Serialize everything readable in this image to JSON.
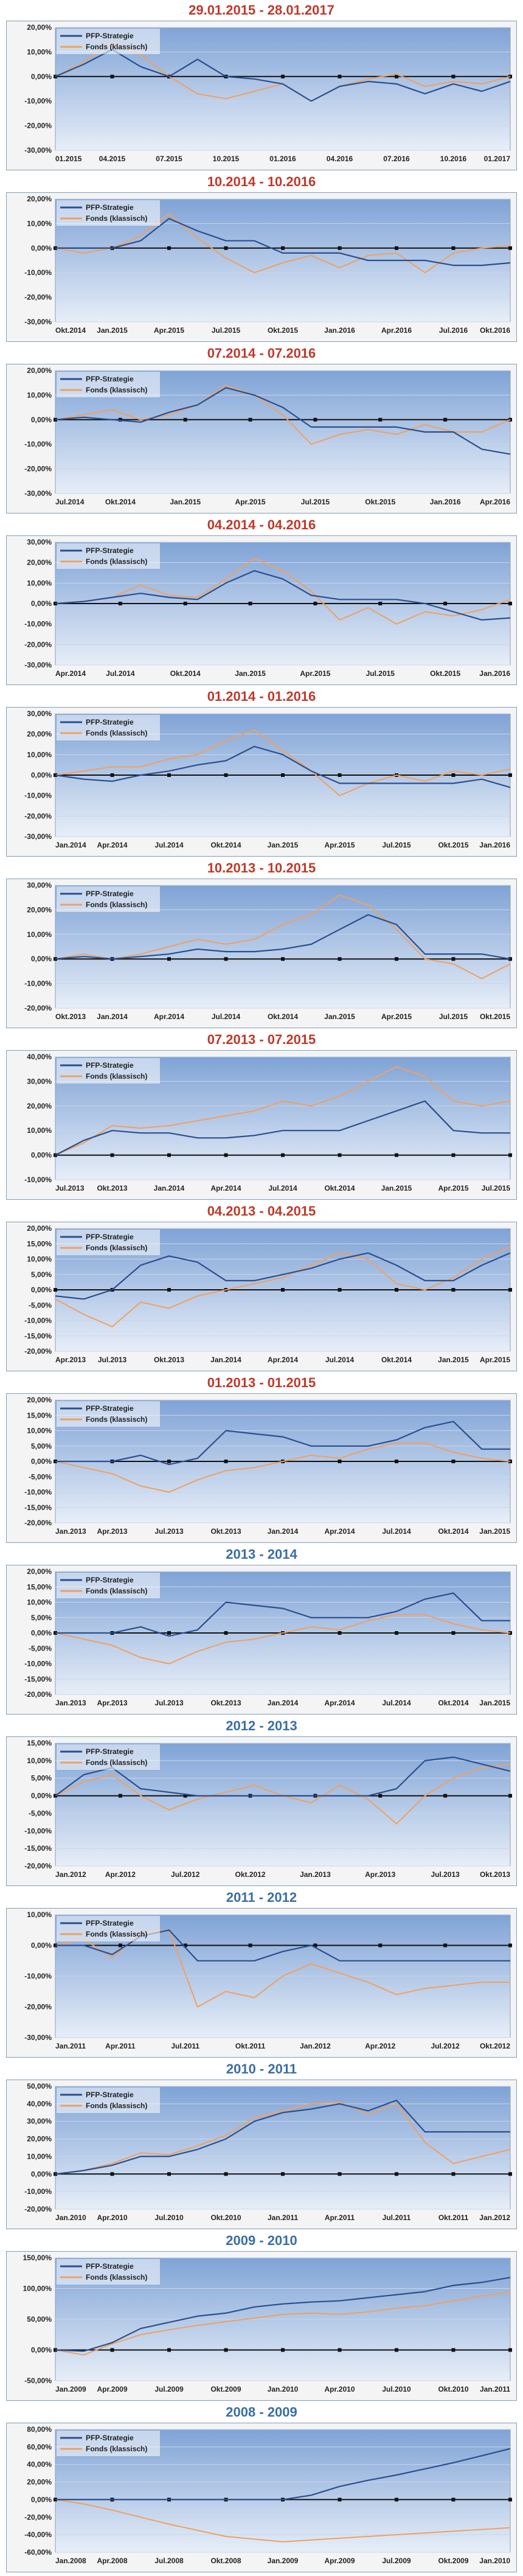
{
  "colors": {
    "strategy": "#2a4f8f",
    "fonds": "#f0a060",
    "baseline": "#111111",
    "title_red": "#c0392b",
    "title_blue": "#3a6ea5",
    "plot_bg_top": "#7fa3d6",
    "plot_bg_bottom": "#e7eef8",
    "frame": "#f4f4f4",
    "grid": "#c9d6ea"
  },
  "legend": {
    "strategy_label": "PFP-Strategie",
    "fonds_label": "Fonds (klassisch)"
  },
  "chart_data": [
    {
      "type": "line",
      "title": "29.01.2015 - 28.01.2017",
      "title_color": "red",
      "legend_position": "top-left",
      "grid": true,
      "yticks": [
        "20,00%",
        "10,00%",
        "0,00%",
        "-10,00%",
        "-20,00%",
        "-30,00%"
      ],
      "ylim": [
        -30,
        20
      ],
      "xticks": [
        "01.2015",
        "04.2015",
        "07.2015",
        "10.2015",
        "01.2016",
        "04.2016",
        "07.2016",
        "10.2016",
        "01.2017"
      ],
      "series": [
        {
          "name": "PFP-Strategie",
          "values": [
            0,
            5,
            11,
            4,
            0,
            7,
            0,
            -1,
            -3,
            -10,
            -4,
            -2,
            -3,
            -7,
            -3,
            -6,
            -2
          ]
        },
        {
          "name": "Fonds (klassisch)",
          "values": [
            0,
            6,
            14,
            9,
            0,
            -7,
            -9,
            -6,
            -3,
            -10,
            -4,
            -1,
            1,
            -4,
            -2,
            -3,
            0
          ]
        }
      ]
    },
    {
      "type": "line",
      "title": "10.2014 - 10.2016",
      "title_color": "red",
      "legend_position": "top-left",
      "grid": true,
      "yticks": [
        "20,00%",
        "10,00%",
        "0,00%",
        "-10,00%",
        "-20,00%",
        "-30,00%"
      ],
      "ylim": [
        -30,
        20
      ],
      "xticks": [
        "Okt.2014",
        "Jan.2015",
        "Apr.2015",
        "Jul.2015",
        "Okt.2015",
        "Jan.2016",
        "Apr.2016",
        "Jul.2016",
        "Okt.2016"
      ],
      "series": [
        {
          "name": "PFP-Strategie",
          "values": [
            0,
            0,
            0,
            3,
            12,
            7,
            3,
            3,
            -2,
            -2,
            -2,
            -5,
            -5,
            -5,
            -7,
            -7,
            -6
          ]
        },
        {
          "name": "Fonds (klassisch)",
          "values": [
            0,
            -2,
            0,
            5,
            14,
            4,
            -4,
            -10,
            -6,
            -3,
            -8,
            -3,
            -2,
            -10,
            -2,
            0,
            1
          ]
        }
      ]
    },
    {
      "type": "line",
      "title": "07.2014 - 07.2016",
      "title_color": "red",
      "legend_position": "top-left",
      "grid": true,
      "yticks": [
        "20,00%",
        "10,00%",
        "0,00%",
        "-10,00%",
        "-20,00%",
        "-30,00%"
      ],
      "ylim": [
        -30,
        20
      ],
      "xticks": [
        "Jul.2014",
        "Okt.2014",
        "Jan.2015",
        "Apr.2015",
        "Jul.2015",
        "Okt.2015",
        "Jan.2016",
        "Apr.2016"
      ],
      "series": [
        {
          "name": "PFP-Strategie",
          "values": [
            0,
            1,
            0,
            -1,
            3,
            6,
            13,
            10,
            5,
            -3,
            -3,
            -3,
            -3,
            -5,
            -5,
            -12,
            -14
          ]
        },
        {
          "name": "Fonds (klassisch)",
          "values": [
            0,
            2,
            4,
            0,
            2,
            6,
            14,
            10,
            2,
            -10,
            -6,
            -4,
            -6,
            -2,
            -5,
            -5,
            0
          ]
        }
      ]
    },
    {
      "type": "line",
      "title": "04.2014 - 04.2016",
      "title_color": "red",
      "legend_position": "top-left",
      "grid": true,
      "yticks": [
        "30,00%",
        "20,00%",
        "10,00%",
        "0,00%",
        "-10,00%",
        "-20,00%",
        "-30,00%"
      ],
      "ylim": [
        -30,
        30
      ],
      "xticks": [
        "Apr.2014",
        "Jul.2014",
        "Okt.2014",
        "Jan.2015",
        "Apr.2015",
        "Jul.2015",
        "Okt.2015",
        "Jan.2016"
      ],
      "series": [
        {
          "name": "PFP-Strategie",
          "values": [
            0,
            1,
            3,
            5,
            3,
            2,
            10,
            16,
            12,
            4,
            2,
            2,
            2,
            0,
            -4,
            -8,
            -7
          ]
        },
        {
          "name": "Fonds (klassisch)",
          "values": [
            0,
            1,
            3,
            9,
            4,
            3,
            12,
            22,
            16,
            6,
            -8,
            -2,
            -10,
            -4,
            -6,
            -3,
            2
          ]
        }
      ]
    },
    {
      "type": "line",
      "title": "01.2014 - 01.2016",
      "title_color": "red",
      "legend_position": "top-left",
      "grid": true,
      "yticks": [
        "30,00%",
        "20,00%",
        "10,00%",
        "0,00%",
        "-10,00%",
        "-20,00%",
        "-30,00%"
      ],
      "ylim": [
        -30,
        30
      ],
      "xticks": [
        "Jan.2014",
        "Apr.2014",
        "Jul.2014",
        "Okt.2014",
        "Jan.2015",
        "Apr.2015",
        "Jul.2015",
        "Okt.2015",
        "Jan.2016"
      ],
      "series": [
        {
          "name": "PFP-Strategie",
          "values": [
            0,
            -2,
            -3,
            0,
            2,
            5,
            7,
            14,
            10,
            2,
            -4,
            -4,
            -4,
            -4,
            -4,
            -2,
            -6
          ]
        },
        {
          "name": "Fonds (klassisch)",
          "values": [
            0,
            2,
            4,
            4,
            8,
            10,
            17,
            22,
            12,
            2,
            -10,
            -4,
            0,
            -3,
            2,
            0,
            3
          ]
        }
      ]
    },
    {
      "type": "line",
      "title": "10.2013 - 10.2015",
      "title_color": "red",
      "legend_position": "top-left",
      "grid": true,
      "yticks": [
        "30,00%",
        "20,00%",
        "10,00%",
        "0,00%",
        "-10,00%",
        "-20,00%"
      ],
      "ylim": [
        -20,
        30
      ],
      "xticks": [
        "Okt.2013",
        "Jan.2014",
        "Apr.2014",
        "Jul.2014",
        "Okt.2014",
        "Jan.2015",
        "Apr.2015",
        "Jul.2015",
        "Okt.2015"
      ],
      "series": [
        {
          "name": "PFP-Strategie",
          "values": [
            0,
            1,
            0,
            1,
            2,
            4,
            3,
            3,
            4,
            6,
            12,
            18,
            14,
            2,
            2,
            2,
            0
          ]
        },
        {
          "name": "Fonds (klassisch)",
          "values": [
            0,
            2,
            0,
            2,
            5,
            8,
            6,
            8,
            14,
            18,
            26,
            22,
            12,
            0,
            -2,
            -8,
            -2
          ]
        }
      ]
    },
    {
      "type": "line",
      "title": "07.2013 - 07.2015",
      "title_color": "red",
      "legend_position": "top-left",
      "grid": true,
      "yticks": [
        "40,00%",
        "30,00%",
        "20,00%",
        "10,00%",
        "0,00%",
        "-10,00%"
      ],
      "ylim": [
        -10,
        40
      ],
      "xticks": [
        "Jul.2013",
        "Okt.2013",
        "Jan.2014",
        "Apr.2014",
        "Jul.2014",
        "Okt.2014",
        "Jan.2015",
        "Apr.2015",
        "Jul.2015"
      ],
      "series": [
        {
          "name": "PFP-Strategie",
          "values": [
            0,
            6,
            10,
            9,
            9,
            7,
            7,
            8,
            10,
            10,
            10,
            14,
            18,
            22,
            10,
            9,
            9
          ]
        },
        {
          "name": "Fonds (klassisch)",
          "values": [
            0,
            5,
            12,
            11,
            12,
            14,
            16,
            18,
            22,
            20,
            24,
            30,
            36,
            32,
            22,
            20,
            22
          ]
        }
      ]
    },
    {
      "type": "line",
      "title": "04.2013 - 04.2015",
      "title_color": "red",
      "legend_position": "top-left",
      "grid": true,
      "yticks": [
        "20,00%",
        "15,00%",
        "10,00%",
        "5,00%",
        "0,00%",
        "-5,00%",
        "-10,00%",
        "-15,00%",
        "-20,00%"
      ],
      "ylim": [
        -20,
        20
      ],
      "xticks": [
        "Apr.2013",
        "Jul.2013",
        "Okt.2013",
        "Jan.2014",
        "Apr.2014",
        "Jul.2014",
        "Okt.2014",
        "Jan.2015",
        "Apr.2015"
      ],
      "series": [
        {
          "name": "PFP-Strategie",
          "values": [
            -2,
            -3,
            0,
            8,
            11,
            9,
            3,
            3,
            5,
            7,
            10,
            12,
            8,
            3,
            3,
            8,
            12
          ]
        },
        {
          "name": "Fonds (klassisch)",
          "values": [
            -3,
            -8,
            -12,
            -4,
            -6,
            -2,
            0,
            2,
            4,
            8,
            12,
            10,
            2,
            0,
            4,
            10,
            14
          ]
        }
      ]
    },
    {
      "type": "line",
      "title": "01.2013 - 01.2015",
      "title_color": "red",
      "legend_position": "top-left",
      "grid": true,
      "yticks": [
        "20,00%",
        "15,00%",
        "10,00%",
        "5,00%",
        "0,00%",
        "-5,00%",
        "-10,00%",
        "-15,00%",
        "-20,00%"
      ],
      "ylim": [
        -20,
        20
      ],
      "xticks": [
        "Jan.2013",
        "Apr.2013",
        "Jul.2013",
        "Okt.2013",
        "Jan.2014",
        "Apr.2014",
        "Jul.2014",
        "Okt.2014",
        "Jan.2015"
      ],
      "series": [
        {
          "name": "PFP-Strategie",
          "values": [
            0,
            0,
            0,
            2,
            -1,
            1,
            10,
            9,
            8,
            5,
            5,
            5,
            7,
            11,
            13,
            4,
            4
          ]
        },
        {
          "name": "Fonds (klassisch)",
          "values": [
            0,
            -2,
            -4,
            -8,
            -10,
            -6,
            -3,
            -2,
            0,
            2,
            1,
            4,
            6,
            6,
            3,
            1,
            0
          ]
        }
      ]
    },
    {
      "type": "line",
      "title": "2013 - 2014",
      "title_color": "blue",
      "legend_position": "top-left",
      "grid": true,
      "yticks": [
        "20,00%",
        "15,00%",
        "10,00%",
        "5,00%",
        "0,00%",
        "-5,00%",
        "-10,00%",
        "-15,00%",
        "-20,00%"
      ],
      "ylim": [
        -20,
        20
      ],
      "xticks": [
        "Jan.2013",
        "Apr.2013",
        "Jul.2013",
        "Okt.2013",
        "Jan.2014",
        "Apr.2014",
        "Jul.2014",
        "Okt.2014",
        "Jan.2015"
      ],
      "series": [
        {
          "name": "PFP-Strategie",
          "values": [
            0,
            0,
            0,
            2,
            -1,
            1,
            10,
            9,
            8,
            5,
            5,
            5,
            7,
            11,
            13,
            4,
            4
          ]
        },
        {
          "name": "Fonds (klassisch)",
          "values": [
            0,
            -2,
            -4,
            -8,
            -10,
            -6,
            -3,
            -2,
            0,
            2,
            1,
            4,
            6,
            6,
            3,
            1,
            0
          ]
        }
      ]
    },
    {
      "type": "line",
      "title": "2012 - 2013",
      "title_color": "blue",
      "legend_position": "top-left",
      "grid": true,
      "yticks": [
        "15,00%",
        "10,00%",
        "5,00%",
        "0,00%",
        "-5,00%",
        "-10,00%",
        "-15,00%",
        "-20,00%"
      ],
      "ylim": [
        -20,
        15
      ],
      "xticks": [
        "Jan.2012",
        "Apr.2012",
        "Jul.2012",
        "Okt.2012",
        "Jan.2013",
        "Apr.2013",
        "Jul.2013",
        "Okt.2013"
      ],
      "series": [
        {
          "name": "PFP-Strategie",
          "values": [
            0,
            6,
            8,
            2,
            1,
            0,
            0,
            0,
            0,
            0,
            0,
            0,
            2,
            10,
            11,
            9,
            7
          ]
        },
        {
          "name": "Fonds (klassisch)",
          "values": [
            0,
            4,
            6,
            0,
            -4,
            -1,
            1,
            3,
            0,
            -2,
            3,
            -1,
            -8,
            0,
            5,
            8,
            9
          ]
        }
      ]
    },
    {
      "type": "line",
      "title": "2011 - 2012",
      "title_color": "blue",
      "legend_position": "top-left",
      "grid": true,
      "yticks": [
        "10,00%",
        "0,00%",
        "-10,00%",
        "-20,00%",
        "-30,00%"
      ],
      "ylim": [
        -30,
        10
      ],
      "xticks": [
        "Jan.2011",
        "Apr.2011",
        "Jul.2011",
        "Okt.2011",
        "Jan.2012",
        "Apr.2012",
        "Jul.2012",
        "Okt.2012"
      ],
      "series": [
        {
          "name": "PFP-Strategie",
          "values": [
            0,
            0,
            -3,
            3,
            5,
            -5,
            -5,
            -5,
            -2,
            0,
            -5,
            -5,
            -5,
            -5,
            -5,
            -5,
            -5
          ]
        },
        {
          "name": "Fonds (klassisch)",
          "values": [
            0,
            2,
            -4,
            4,
            5,
            -20,
            -15,
            -17,
            -10,
            -6,
            -9,
            -12,
            -16,
            -14,
            -13,
            -12,
            -12
          ]
        }
      ]
    },
    {
      "type": "line",
      "title": "2010 - 2011",
      "title_color": "blue",
      "legend_position": "top-left",
      "grid": true,
      "yticks": [
        "50,00%",
        "40,00%",
        "30,00%",
        "20,00%",
        "10,00%",
        "0,00%",
        "-10,00%",
        "-20,00%"
      ],
      "ylim": [
        -20,
        50
      ],
      "xticks": [
        "Jan.2010",
        "Apr.2010",
        "Jul.2010",
        "Okt.2010",
        "Jan.2011",
        "Apr.2011",
        "Jul.2011",
        "Okt.2011",
        "Jan.2012"
      ],
      "series": [
        {
          "name": "PFP-Strategie",
          "values": [
            0,
            2,
            5,
            10,
            10,
            14,
            20,
            30,
            35,
            37,
            40,
            36,
            42,
            24,
            24,
            24,
            24
          ]
        },
        {
          "name": "Fonds (klassisch)",
          "values": [
            0,
            2,
            6,
            12,
            11,
            16,
            22,
            32,
            36,
            40,
            41,
            34,
            40,
            18,
            6,
            10,
            14
          ]
        }
      ]
    },
    {
      "type": "line",
      "title": "2009 - 2010",
      "title_color": "blue",
      "legend_position": "top-left",
      "grid": true,
      "yticks": [
        "150,00%",
        "100,00%",
        "50,00%",
        "0,00%",
        "-50,00%"
      ],
      "ylim": [
        -50,
        150
      ],
      "xticks": [
        "Jan.2009",
        "Apr.2009",
        "Jul.2009",
        "Okt.2009",
        "Jan.2010",
        "Apr.2010",
        "Jul.2010",
        "Okt.2010",
        "Jan.2011"
      ],
      "series": [
        {
          "name": "PFP-Strategie",
          "values": [
            0,
            -2,
            12,
            35,
            45,
            55,
            60,
            70,
            75,
            78,
            80,
            85,
            90,
            95,
            105,
            110,
            118
          ]
        },
        {
          "name": "Fonds (klassisch)",
          "values": [
            0,
            -8,
            10,
            25,
            33,
            40,
            46,
            52,
            58,
            60,
            58,
            62,
            68,
            72,
            80,
            88,
            95
          ]
        }
      ]
    },
    {
      "type": "line",
      "title": "2008 - 2009",
      "title_color": "blue",
      "legend_position": "top-left",
      "grid": true,
      "yticks": [
        "80,00%",
        "60,00%",
        "40,00%",
        "20,00%",
        "0,00%",
        "-20,00%",
        "-40,00%",
        "-60,00%"
      ],
      "ylim": [
        -60,
        80
      ],
      "xticks": [
        "Jan.2008",
        "Apr.2008",
        "Jul.2008",
        "Okt.2008",
        "Jan.2009",
        "Apr.2009",
        "Jul.2009",
        "Okt.2009",
        "Jan.2010"
      ],
      "series": [
        {
          "name": "PFP-Strategie",
          "values": [
            0,
            0,
            0,
            0,
            0,
            0,
            0,
            0,
            0,
            5,
            15,
            22,
            28,
            35,
            42,
            50,
            58
          ]
        },
        {
          "name": "Fonds (klassisch)",
          "values": [
            0,
            -5,
            -12,
            -20,
            -28,
            -35,
            -42,
            -45,
            -48,
            -46,
            -44,
            -42,
            -40,
            -38,
            -36,
            -34,
            -32
          ]
        }
      ]
    }
  ]
}
